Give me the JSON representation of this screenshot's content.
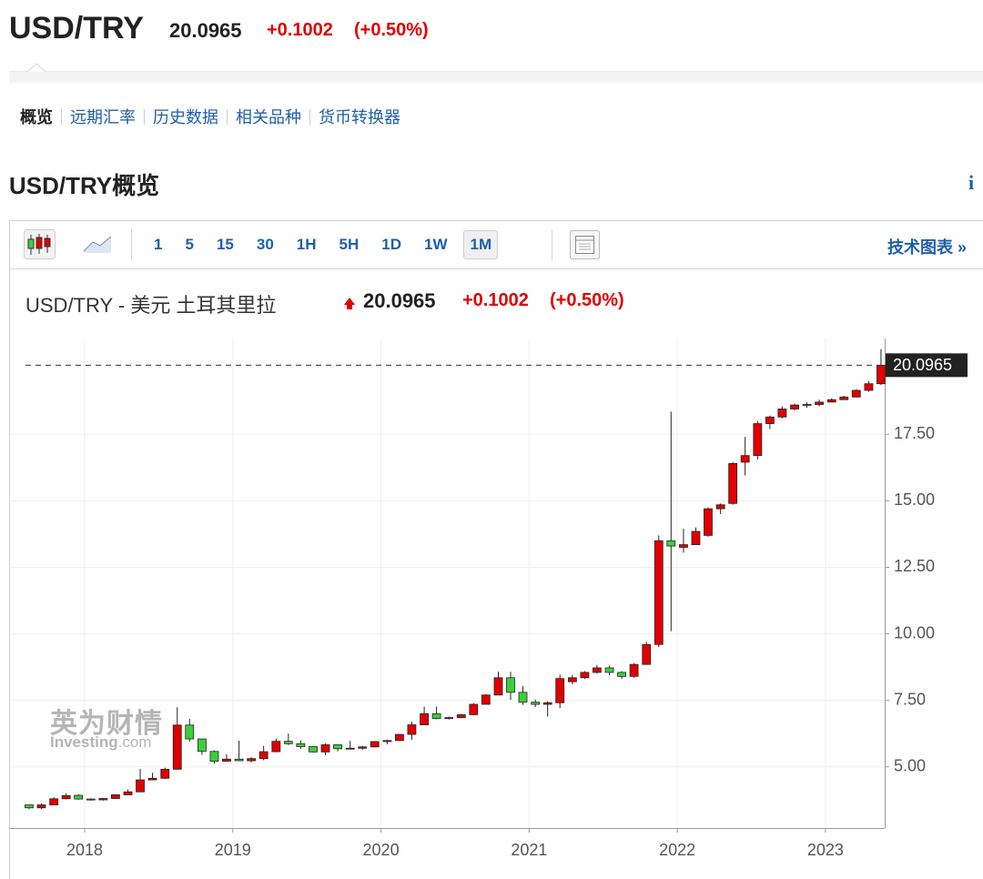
{
  "header": {
    "symbol": "USD/TRY",
    "price": "20.0965",
    "change": "+0.1002",
    "change_pct": "(+0.50%)"
  },
  "nav": {
    "items": [
      "概览",
      "远期汇率",
      "历史数据",
      "相关品种",
      "货币转换器"
    ],
    "active": "概览"
  },
  "section_title": "USD/TRY概览",
  "info_icon": "i",
  "toolbar": {
    "intervals": [
      "1",
      "5",
      "15",
      "30",
      "1H",
      "5H",
      "1D",
      "1W",
      "1M"
    ],
    "selected": "1M",
    "link": "技术图表 »"
  },
  "watermark": {
    "cn": "英为财情",
    "en": "Investing",
    "suffix": ".com"
  },
  "chart_data": {
    "type": "candlestick",
    "title": "USD/TRY - 美元 土耳其里拉",
    "last_price": 20.0965,
    "change": "+0.1002",
    "change_pct": "(+0.50%)",
    "up_color": "#e00000",
    "down_color": "#3ccf3c",
    "grid": true,
    "xlim": [
      2017.49,
      2023.4
    ],
    "xticks": [
      2018,
      2019,
      2020,
      2021,
      2022,
      2023
    ],
    "ylim": [
      2.7,
      21.1
    ],
    "yticks": [
      {
        "value": 5,
        "label": "5.00"
      },
      {
        "value": 7.5,
        "label": "7.50"
      },
      {
        "value": 10,
        "label": "10.00"
      },
      {
        "value": 12.5,
        "label": "12.50"
      },
      {
        "value": 15,
        "label": "15.00"
      },
      {
        "value": 17.5,
        "label": "17.50"
      }
    ],
    "x": [
      2017.625,
      2017.708,
      2017.792,
      2017.875,
      2017.958,
      2018.042,
      2018.125,
      2018.208,
      2018.292,
      2018.375,
      2018.458,
      2018.542,
      2018.625,
      2018.708,
      2018.792,
      2018.875,
      2018.958,
      2019.042,
      2019.125,
      2019.208,
      2019.292,
      2019.375,
      2019.458,
      2019.542,
      2019.625,
      2019.708,
      2019.792,
      2019.875,
      2019.958,
      2020.042,
      2020.125,
      2020.208,
      2020.292,
      2020.375,
      2020.458,
      2020.542,
      2020.625,
      2020.708,
      2020.792,
      2020.875,
      2020.958,
      2021.042,
      2021.125,
      2021.208,
      2021.292,
      2021.375,
      2021.458,
      2021.542,
      2021.625,
      2021.708,
      2021.792,
      2021.875,
      2021.958,
      2022.042,
      2022.125,
      2022.208,
      2022.292,
      2022.375,
      2022.458,
      2022.542,
      2022.625,
      2022.708,
      2022.792,
      2022.875,
      2022.958,
      2023.042,
      2023.125,
      2023.208,
      2023.292,
      2023.375
    ],
    "open": [
      3.57,
      3.46,
      3.57,
      3.8,
      3.93,
      3.79,
      3.76,
      3.81,
      3.95,
      4.06,
      4.51,
      4.57,
      4.91,
      6.57,
      6.05,
      5.58,
      5.21,
      5.29,
      5.23,
      5.31,
      5.57,
      5.96,
      5.87,
      5.76,
      5.56,
      5.83,
      5.68,
      5.7,
      5.75,
      5.95,
      5.99,
      6.22,
      6.58,
      7.0,
      6.82,
      6.85,
      6.96,
      7.35,
      7.7,
      8.35,
      7.8,
      7.43,
      7.35,
      7.41,
      8.2,
      8.35,
      8.55,
      8.72,
      8.55,
      8.4,
      8.85,
      9.6,
      13.5,
      13.25,
      13.35,
      13.7,
      14.7,
      14.9,
      16.45,
      16.7,
      17.9,
      18.15,
      18.45,
      18.6,
      18.62,
      18.71,
      18.8,
      18.9,
      19.15,
      19.4
    ],
    "high": [
      3.58,
      3.62,
      3.86,
      4.0,
      3.97,
      3.82,
      3.83,
      3.97,
      4.15,
      4.92,
      4.78,
      4.97,
      7.24,
      6.8,
      6.05,
      5.62,
      5.48,
      5.98,
      5.36,
      5.79,
      6.06,
      6.25,
      5.99,
      5.77,
      5.88,
      5.83,
      5.98,
      5.79,
      5.97,
      6.02,
      6.24,
      6.69,
      7.26,
      7.27,
      6.89,
      6.99,
      7.4,
      7.73,
      8.58,
      8.57,
      8.03,
      7.53,
      7.46,
      8.47,
      8.45,
      8.6,
      8.83,
      8.8,
      8.6,
      8.9,
      9.7,
      13.7,
      18.35,
      13.95,
      14.0,
      14.75,
      14.9,
      16.45,
      17.4,
      18.0,
      18.2,
      18.55,
      18.65,
      18.7,
      18.8,
      18.85,
      18.95,
      19.2,
      19.5,
      20.7
    ],
    "low": [
      3.41,
      3.41,
      3.56,
      3.78,
      3.77,
      3.73,
      3.73,
      3.79,
      3.95,
      4.06,
      4.52,
      4.54,
      4.91,
      5.94,
      5.45,
      5.12,
      5.19,
      5.22,
      5.17,
      5.25,
      5.55,
      5.82,
      5.68,
      5.54,
      5.44,
      5.58,
      5.68,
      5.64,
      5.73,
      5.85,
      5.97,
      6.02,
      6.59,
      6.79,
      6.78,
      6.83,
      6.94,
      7.35,
      7.7,
      7.52,
      7.33,
      7.25,
      6.89,
      7.21,
      8.1,
      8.3,
      8.5,
      8.45,
      8.3,
      8.35,
      8.85,
      9.5,
      10.1,
      13.05,
      13.35,
      13.65,
      14.5,
      14.85,
      15.95,
      16.55,
      17.7,
      18.1,
      18.4,
      18.5,
      18.55,
      18.7,
      18.8,
      18.9,
      19.1,
      19.35
    ],
    "close": [
      3.46,
      3.57,
      3.8,
      3.92,
      3.79,
      3.76,
      3.81,
      3.95,
      4.06,
      4.51,
      4.57,
      4.91,
      6.57,
      6.05,
      5.58,
      5.21,
      5.29,
      5.23,
      5.31,
      5.57,
      5.96,
      5.87,
      5.76,
      5.56,
      5.83,
      5.68,
      5.7,
      5.75,
      5.95,
      5.99,
      6.22,
      6.58,
      7.0,
      6.82,
      6.85,
      6.96,
      7.35,
      7.7,
      8.35,
      7.8,
      7.43,
      7.35,
      7.41,
      8.32,
      8.35,
      8.55,
      8.72,
      8.55,
      8.4,
      8.85,
      9.6,
      13.5,
      13.3,
      13.35,
      13.85,
      14.7,
      14.85,
      16.4,
      16.7,
      17.9,
      18.15,
      18.45,
      18.6,
      18.62,
      18.71,
      18.8,
      18.9,
      19.15,
      19.4,
      20.0965
    ]
  }
}
